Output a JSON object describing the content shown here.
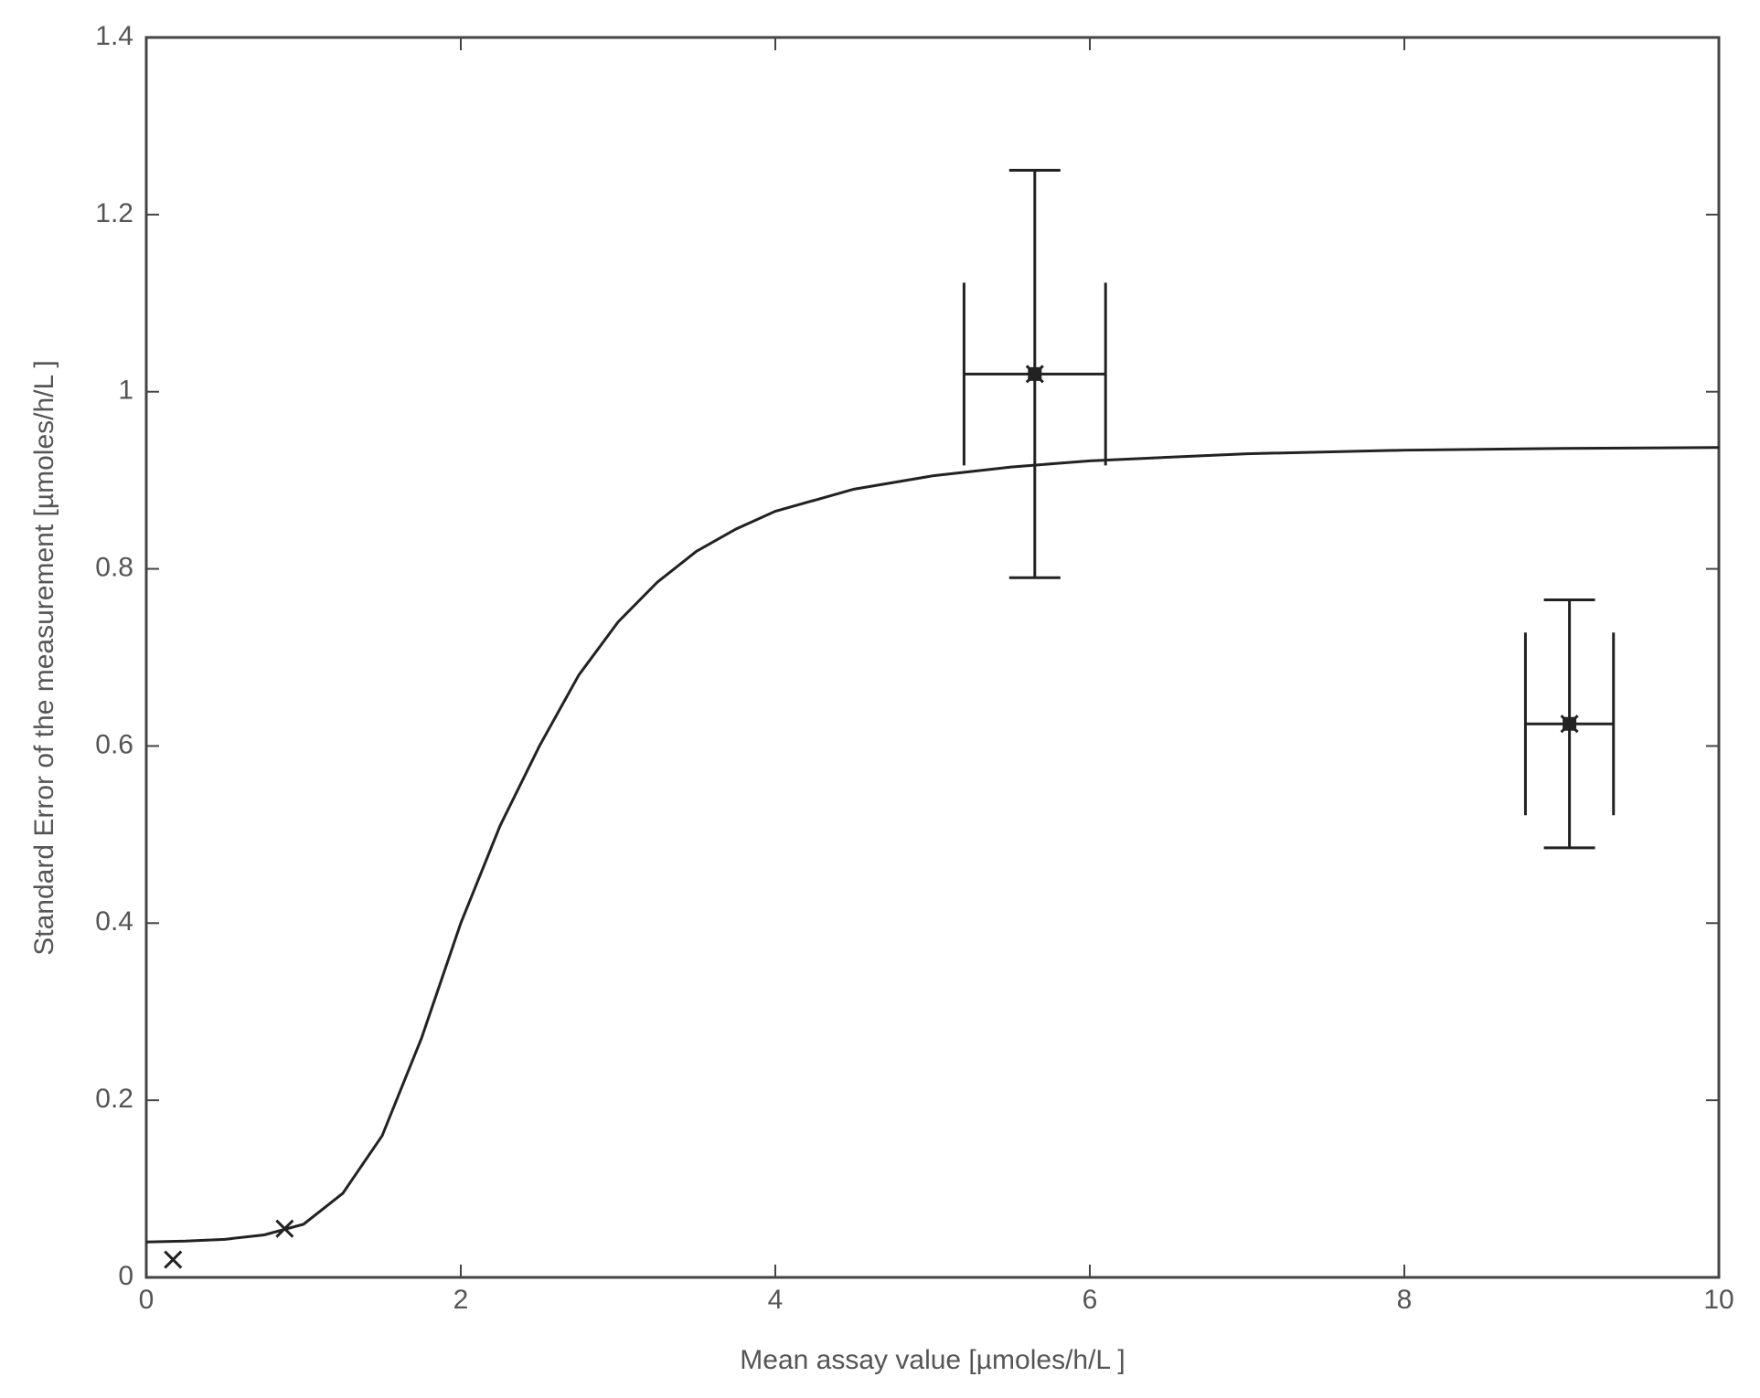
{
  "chart_data": {
    "type": "line",
    "xlabel": "Mean assay value [µmoles/h/L ]",
    "ylabel": "Standard Error of the measurement [µmoles/h/L ]",
    "xlim": [
      0,
      10
    ],
    "xticks": [
      0,
      2,
      4,
      6,
      8,
      10
    ],
    "ylim": [
      0,
      1.4
    ],
    "yticks": [
      0,
      0.2,
      0.4,
      0.6,
      0.8,
      1,
      1.2,
      1.4
    ],
    "series": [
      {
        "type": "line",
        "color": "#222222",
        "x": [
          0,
          0.25,
          0.5,
          0.75,
          1,
          1.25,
          1.5,
          1.75,
          2,
          2.25,
          2.5,
          2.75,
          3,
          3.25,
          3.5,
          3.75,
          4,
          4.5,
          5,
          5.5,
          6,
          7,
          8,
          9,
          10
        ],
        "values": [
          0.04,
          0.041,
          0.043,
          0.048,
          0.06,
          0.095,
          0.16,
          0.27,
          0.4,
          0.51,
          0.6,
          0.68,
          0.74,
          0.785,
          0.82,
          0.845,
          0.865,
          0.89,
          0.905,
          0.915,
          0.922,
          0.93,
          0.934,
          0.936,
          0.937
        ]
      },
      {
        "type": "errorbar",
        "color": "#222222",
        "x": [
          0.17,
          0.88,
          5.65,
          9.05
        ],
        "values": [
          0.02,
          0.055,
          1.02,
          0.625
        ],
        "xerr": [
          null,
          null,
          0.45,
          0.28
        ],
        "yerr": [
          null,
          null,
          0.23,
          0.14
        ]
      }
    ]
  }
}
